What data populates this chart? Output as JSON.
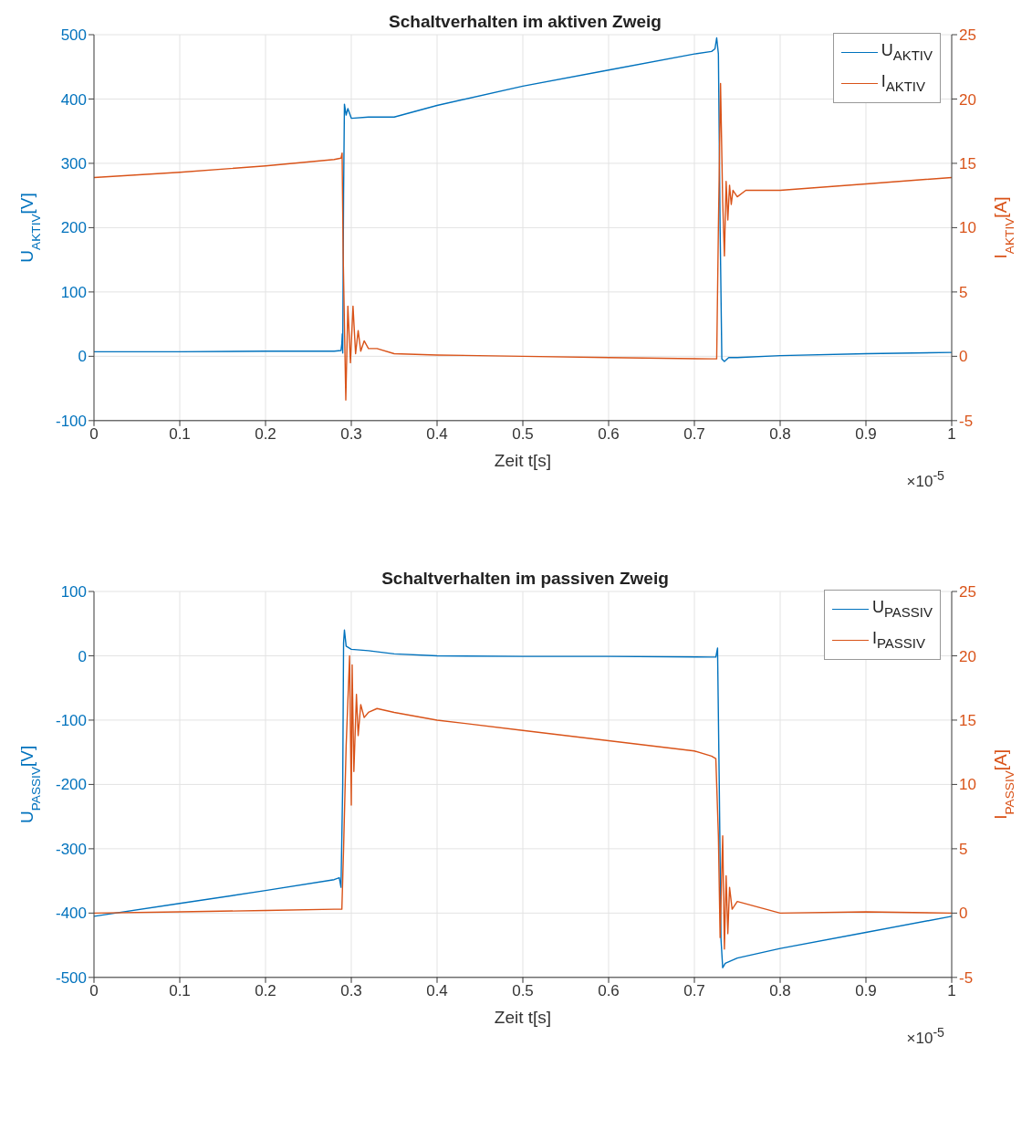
{
  "chart_data": [
    {
      "type": "line",
      "title": "Schaltverhalten im aktiven Zweig",
      "xlabel": "Zeit t[s]",
      "ylabel": "U$_{AKTIV}$[V]",
      "y2label": "I$_{AKTIV}$[A]",
      "annotations": [
        "×10$^{-5}$"
      ],
      "xlim": [
        0,
        1
      ],
      "xticks": [
        0,
        0.1,
        0.2,
        0.3,
        0.4,
        0.5,
        0.6,
        0.7,
        0.8,
        0.9,
        1
      ],
      "ylim": [
        -100,
        500
      ],
      "yticks": [
        -100,
        0,
        100,
        200,
        300,
        400,
        500
      ],
      "y2lim": [
        -5,
        25
      ],
      "y2ticks": [
        -5,
        0,
        5,
        10,
        15,
        20,
        25
      ],
      "grid": true,
      "legend": "top right",
      "series": [
        {
          "name": "U$_{AKTIV}$",
          "color": "#0072bd",
          "x": [
            0,
            0.1,
            0.2,
            0.28,
            0.288,
            0.289,
            0.2895,
            0.29,
            0.291,
            0.292,
            0.294,
            0.296,
            0.3,
            0.32,
            0.35,
            0.4,
            0.5,
            0.6,
            0.7,
            0.72,
            0.724,
            0.726,
            0.728,
            0.73,
            0.732,
            0.735,
            0.74,
            0.75,
            0.8,
            0.9,
            1
          ],
          "values": [
            7,
            7,
            8,
            8,
            9,
            20,
            35,
            5,
            250,
            392,
            375,
            385,
            370,
            372,
            372,
            390,
            420,
            445,
            470,
            474,
            478,
            495,
            470,
            200,
            -4,
            -8,
            -2,
            -2,
            1,
            4,
            6
          ]
        },
        {
          "name": "I$_{AKTIV}$",
          "color": "#d95319",
          "axis": "y2",
          "x": [
            0,
            0.1,
            0.2,
            0.28,
            0.288,
            0.2893,
            0.2905,
            0.2936,
            0.296,
            0.299,
            0.302,
            0.305,
            0.308,
            0.311,
            0.315,
            0.32,
            0.33,
            0.35,
            0.4,
            0.5,
            0.6,
            0.72,
            0.726,
            0.728,
            0.7305,
            0.733,
            0.735,
            0.737,
            0.739,
            0.741,
            0.743,
            0.745,
            0.75,
            0.76,
            0.8,
            0.9,
            1
          ],
          "values": [
            13.9,
            14.3,
            14.8,
            15.3,
            15.4,
            15.8,
            8,
            -3.4,
            3.9,
            -0.5,
            3.9,
            0.2,
            2,
            0.4,
            1.2,
            0.6,
            0.6,
            0.2,
            0.1,
            0,
            -0.1,
            -0.2,
            -0.2,
            10,
            21.2,
            12,
            7.8,
            13.6,
            10.6,
            13.3,
            11.8,
            12.9,
            12.4,
            12.9,
            12.9,
            13.4,
            13.9
          ]
        }
      ]
    },
    {
      "type": "line",
      "title": "Schaltverhalten im passiven Zweig",
      "xlabel": "Zeit t[s]",
      "ylabel": "U$_{PASSIV}$[V]",
      "y2label": "I$_{PASSIV}$[A]",
      "annotations": [
        "×10$^{-5}$"
      ],
      "xlim": [
        0,
        1
      ],
      "xticks": [
        0,
        0.1,
        0.2,
        0.3,
        0.4,
        0.5,
        0.6,
        0.7,
        0.8,
        0.9,
        1
      ],
      "ylim": [
        -500,
        100
      ],
      "yticks": [
        -500,
        -400,
        -300,
        -200,
        -100,
        0,
        100
      ],
      "y2lim": [
        -5,
        25
      ],
      "y2ticks": [
        -5,
        0,
        5,
        10,
        15,
        20,
        25
      ],
      "grid": true,
      "legend": "top right",
      "series": [
        {
          "name": "U$_{PASSIV}$",
          "color": "#0072bd",
          "x": [
            0,
            0.1,
            0.2,
            0.28,
            0.286,
            0.288,
            0.29,
            0.291,
            0.292,
            0.294,
            0.3,
            0.32,
            0.35,
            0.4,
            0.5,
            0.6,
            0.72,
            0.725,
            0.727,
            0.729,
            0.731,
            0.733,
            0.736,
            0.75,
            0.8,
            0.9,
            1
          ],
          "values": [
            -405,
            -385,
            -365,
            -348,
            -345,
            -360,
            -200,
            20,
            40,
            15,
            10,
            8,
            3,
            0,
            -1,
            -1,
            -2,
            -2,
            12,
            -200,
            -440,
            -485,
            -478,
            -470,
            -455,
            -430,
            -405
          ]
        },
        {
          "name": "I$_{PASSIV}$",
          "color": "#d95319",
          "axis": "y2",
          "x": [
            0,
            0.1,
            0.2,
            0.28,
            0.289,
            0.291,
            0.294,
            0.298,
            0.3,
            0.301,
            0.303,
            0.306,
            0.308,
            0.311,
            0.315,
            0.32,
            0.33,
            0.35,
            0.4,
            0.5,
            0.6,
            0.7,
            0.72,
            0.725,
            0.728,
            0.73,
            0.733,
            0.735,
            0.737,
            0.739,
            0.741,
            0.744,
            0.75,
            0.8,
            0.9,
            1
          ],
          "values": [
            0,
            0.1,
            0.2,
            0.3,
            0.3,
            5,
            13,
            20,
            8.4,
            19.3,
            11,
            17,
            13.8,
            16.2,
            15.2,
            15.6,
            15.9,
            15.6,
            15,
            14.2,
            13.4,
            12.6,
            12.2,
            12,
            6,
            -1.9,
            6,
            -2.8,
            2.9,
            -1.6,
            2,
            0.3,
            0.9,
            0,
            0.1,
            0
          ]
        }
      ]
    }
  ]
}
